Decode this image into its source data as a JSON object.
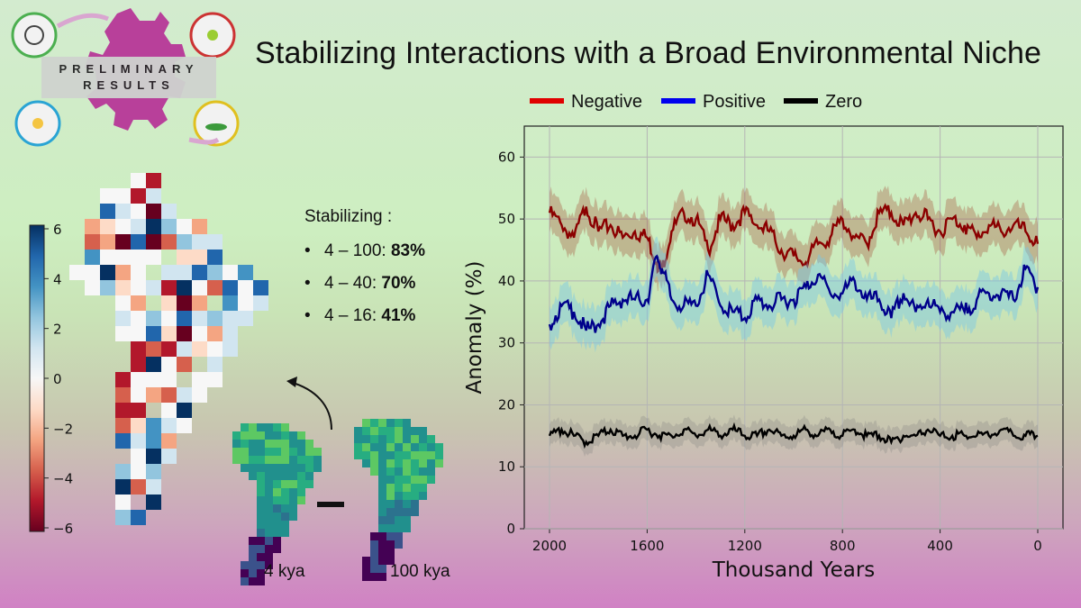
{
  "slide": {
    "title": "Stabilizing Interactions with a Broad Environmental Niche",
    "badge_line1": "PRELIMINARY",
    "badge_line2": "RESULTS"
  },
  "stabilizing": {
    "heading": "Stabilizing :",
    "items": [
      {
        "range": "4 – 100: ",
        "value": "83%"
      },
      {
        "range": "4 – 40: ",
        "value": "70%"
      },
      {
        "range": "4 – 16: ",
        "value": "41%"
      }
    ]
  },
  "maps": {
    "label_left": "4 kya",
    "label_right": "100 kya",
    "colorbar_ticks": [
      "6",
      "4",
      "2",
      "0",
      "−2",
      "−4",
      "−6"
    ]
  },
  "colors": {
    "negative": "#8b0000",
    "positive": "#00008b",
    "zero": "#000000"
  },
  "chart_data": {
    "type": "line",
    "xlabel": "Thousand Years",
    "ylabel": "Anomaly (%)",
    "xlim": [
      2000,
      0
    ],
    "ylim": [
      0,
      65
    ],
    "xticks": [
      "2000",
      "1600",
      "1200",
      "800",
      "400",
      "0"
    ],
    "yticks": [
      "0",
      "10",
      "20",
      "30",
      "40",
      "50",
      "60"
    ],
    "grid": true,
    "legend_position": "top",
    "series": [
      {
        "name": "Negative",
        "color": "#8b0000",
        "legend_color": "#e00000",
        "x": [
          2000,
          1950,
          1900,
          1850,
          1800,
          1750,
          1700,
          1650,
          1600,
          1560,
          1540,
          1500,
          1450,
          1400,
          1350,
          1300,
          1250,
          1200,
          1150,
          1100,
          1050,
          1000,
          950,
          900,
          850,
          800,
          750,
          700,
          650,
          600,
          550,
          500,
          450,
          400,
          350,
          300,
          250,
          200,
          150,
          100,
          50,
          0
        ],
        "y": [
          51,
          49,
          47,
          52,
          48,
          49,
          47,
          48,
          47,
          43,
          42,
          48,
          51,
          50,
          45,
          50,
          49,
          51,
          49,
          48,
          45,
          44,
          43,
          46,
          47,
          50,
          47,
          46,
          51,
          51,
          49,
          51,
          50,
          48,
          50,
          49,
          47,
          49,
          48,
          49,
          48,
          46
        ]
      },
      {
        "name": "Positive",
        "color": "#00008b",
        "legend_color": "#0000ee",
        "x": [
          2000,
          1950,
          1900,
          1850,
          1800,
          1750,
          1700,
          1650,
          1600,
          1560,
          1540,
          1500,
          1450,
          1400,
          1350,
          1300,
          1250,
          1200,
          1150,
          1100,
          1050,
          1000,
          950,
          900,
          850,
          800,
          750,
          700,
          650,
          600,
          550,
          500,
          450,
          400,
          350,
          300,
          250,
          200,
          150,
          100,
          50,
          0
        ],
        "y": [
          33,
          36,
          35,
          32,
          33,
          36,
          37,
          37,
          37,
          44,
          42,
          37,
          36,
          36,
          41,
          36,
          35,
          34,
          37,
          36,
          37,
          37,
          39,
          41,
          38,
          38,
          40,
          37,
          37,
          34,
          38,
          35,
          37,
          35,
          35,
          35,
          37,
          38,
          38,
          37,
          42,
          39
        ]
      },
      {
        "name": "Zero",
        "color": "#000000",
        "legend_color": "#000000",
        "x": [
          2000,
          1950,
          1900,
          1850,
          1800,
          1750,
          1700,
          1650,
          1600,
          1550,
          1500,
          1450,
          1400,
          1350,
          1300,
          1250,
          1200,
          1150,
          1100,
          1050,
          1000,
          950,
          900,
          850,
          800,
          750,
          700,
          650,
          600,
          550,
          500,
          450,
          400,
          350,
          300,
          250,
          200,
          150,
          100,
          50,
          0
        ],
        "y": [
          15,
          16,
          15,
          14,
          15,
          16,
          15,
          15,
          16,
          15,
          15,
          16,
          15,
          16,
          15,
          16,
          15,
          15,
          16,
          15,
          15,
          16,
          15,
          16,
          15,
          16,
          15,
          15,
          14,
          15,
          15,
          16,
          15,
          15,
          15,
          15,
          15,
          16,
          15,
          15,
          15
        ]
      }
    ]
  }
}
